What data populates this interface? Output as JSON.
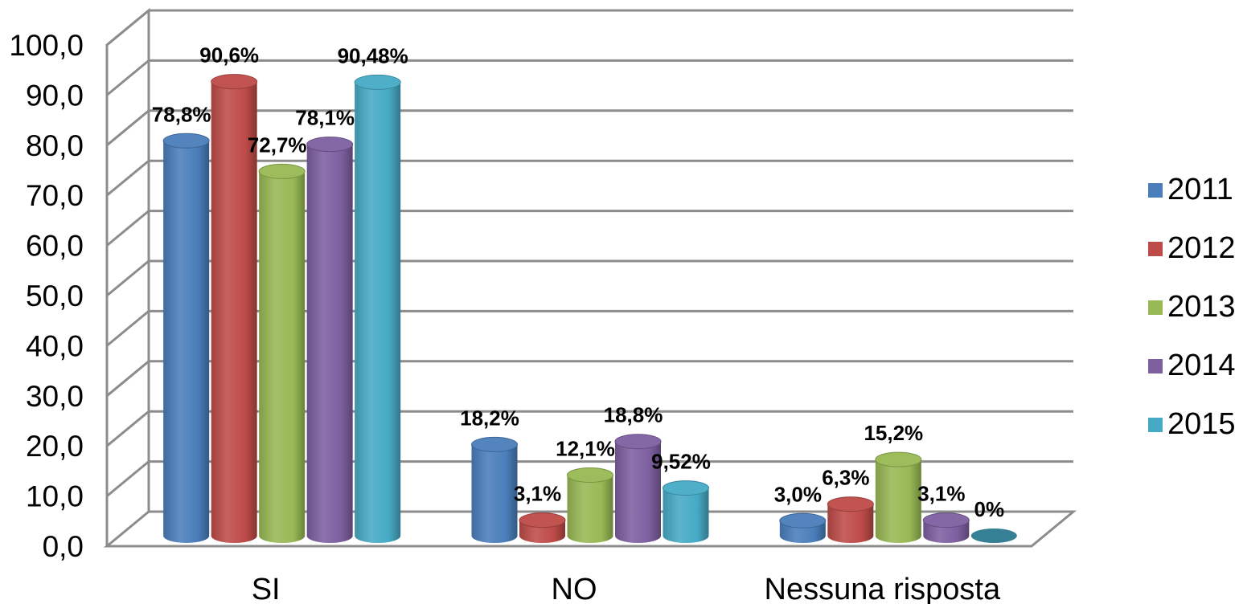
{
  "chart_data": {
    "type": "bar",
    "style": "3d-cylinder",
    "categories": [
      "SI",
      "NO",
      "Nessuna risposta"
    ],
    "series": [
      {
        "name": "2011",
        "color": "#4a7ebb",
        "values": [
          78.8,
          18.2,
          3.0
        ],
        "labels": [
          "78,8%",
          "18,2%",
          "3,0%"
        ]
      },
      {
        "name": "2012",
        "color": "#be4b48",
        "values": [
          90.6,
          3.1,
          6.3
        ],
        "labels": [
          "90,6%",
          "3,1%",
          "6,3%"
        ]
      },
      {
        "name": "2013",
        "color": "#98b954",
        "values": [
          72.7,
          12.1,
          15.2
        ],
        "labels": [
          "72,7%",
          "12,1%",
          "15,2%"
        ]
      },
      {
        "name": "2014",
        "color": "#7d5fa0",
        "values": [
          78.1,
          18.8,
          3.1
        ],
        "labels": [
          "78,1%",
          "18,8%",
          "3,1%"
        ]
      },
      {
        "name": "2015",
        "color": "#46aac5",
        "values": [
          90.48,
          9.52,
          0
        ],
        "labels": [
          "90,48%",
          "9,52%",
          "0%"
        ]
      }
    ],
    "ylim": [
      0,
      100
    ],
    "yticks": [
      "0,0",
      "10,0",
      "20,0",
      "30,0",
      "40,0",
      "50,0",
      "60,0",
      "70,0",
      "80,0",
      "90,0",
      "100,0"
    ],
    "title": "",
    "xlabel": "",
    "ylabel": "",
    "grid": true,
    "legend_position": "right"
  }
}
